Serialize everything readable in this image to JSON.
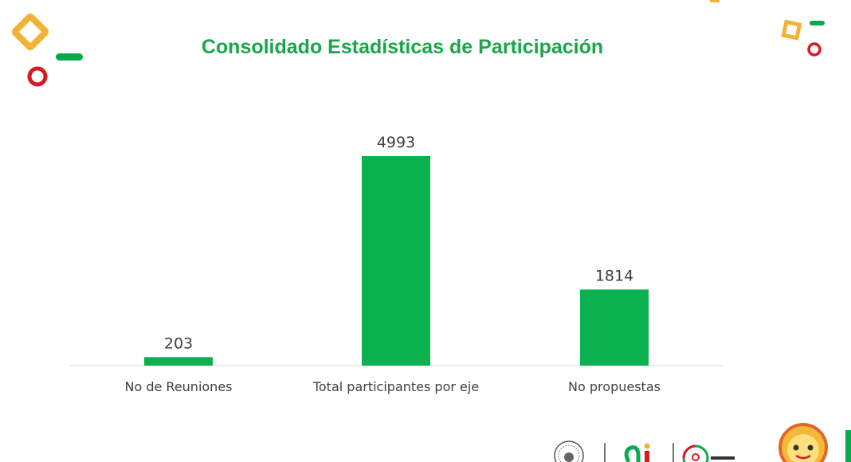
{
  "colors": {
    "title": "#1aa64a",
    "bar": "#0bb14e",
    "axis": "#d9d9d9",
    "deco_yellow": "#f2b233",
    "deco_red": "#d71920",
    "deco_green": "#0aa94b"
  },
  "chart_data": {
    "type": "bar",
    "title": "Consolidado Estadísticas de Participación",
    "categories": [
      "No de Reuniones",
      "Total participantes por eje",
      "No propuestas"
    ],
    "values": [
      203,
      4993,
      1814
    ],
    "data_labels": [
      "203",
      "4993",
      "1814"
    ],
    "ylim": [
      0,
      4993
    ],
    "grid": false,
    "legend": "none"
  },
  "footer": {
    "logos": [
      "seal-logo",
      "ai-logo",
      "circle-logo",
      "smiley-mascot"
    ]
  }
}
